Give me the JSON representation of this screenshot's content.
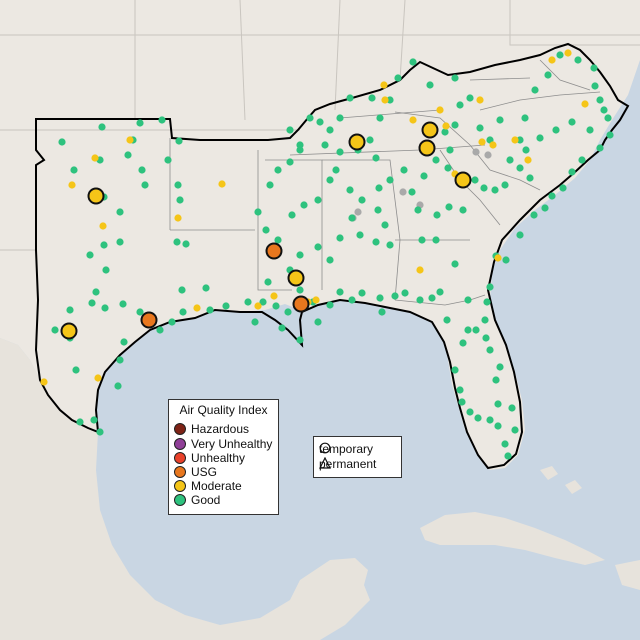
{
  "legend_aqi": {
    "title": "Air Quality Index",
    "items": [
      {
        "label": "Hazardous",
        "color": "#7e2316"
      },
      {
        "label": "Very Unhealthy",
        "color": "#8f3f97"
      },
      {
        "label": "Unhealthy",
        "color": "#e8412a"
      },
      {
        "label": "USG",
        "color": "#e8771e"
      },
      {
        "label": "Moderate",
        "color": "#f5c518"
      },
      {
        "label": "Good",
        "color": "#2ec27e"
      }
    ]
  },
  "legend_shape": {
    "items": [
      {
        "label": "temporary",
        "shape": "circle"
      },
      {
        "label": "permanent",
        "shape": "triangle"
      }
    ]
  },
  "colors": {
    "water": "#c9d6e3",
    "land": "#ece8e2",
    "good": "#2ec27e",
    "moderate": "#f5c518",
    "usg": "#e8771e",
    "nodata": "#a9a9a9"
  }
}
